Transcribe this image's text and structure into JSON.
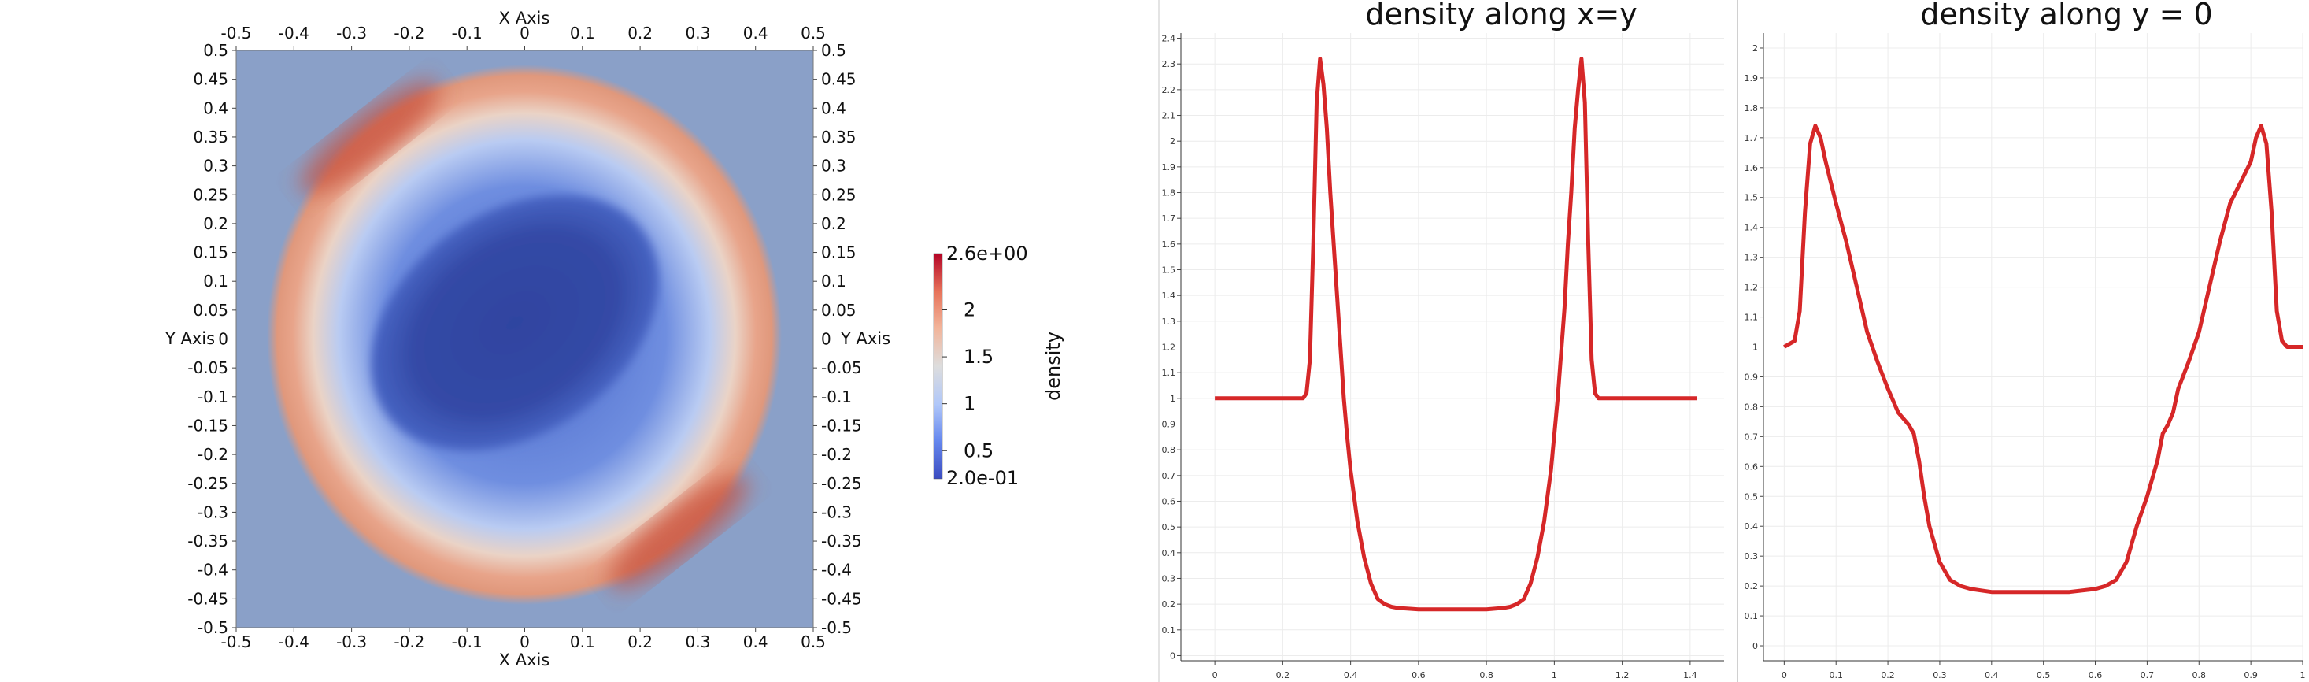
{
  "chart_data": [
    {
      "type": "heatmap",
      "title": "",
      "xlabel": "X Axis",
      "ylabel": "Y Axis",
      "xlim": [
        -0.5,
        0.5
      ],
      "ylim": [
        -0.5,
        0.5
      ],
      "x_ticks": [
        -0.5,
        -0.4,
        -0.3,
        -0.2,
        -0.1,
        0,
        0.1,
        0.2,
        0.3,
        0.4,
        0.5
      ],
      "y_ticks": [
        0.5,
        0.45,
        0.4,
        0.35,
        0.3,
        0.25,
        0.2,
        0.15,
        0.1,
        0.05,
        0,
        -0.05,
        -0.1,
        -0.15,
        -0.2,
        -0.25,
        -0.3,
        -0.35,
        -0.4,
        -0.45,
        -0.5
      ],
      "colorbar": {
        "title": "density",
        "range": [
          0.2,
          2.6
        ],
        "max_label": "2.6e+00",
        "min_label": "2.0e-01",
        "ticks": [
          {
            "value": 2,
            "label": "2"
          },
          {
            "value": 1.5,
            "label": "1.5"
          },
          {
            "value": 1,
            "label": "1"
          },
          {
            "value": 0.5,
            "label": "0.5"
          }
        ],
        "colormap": [
          "#3b4cc0",
          "#6688ee",
          "#b0c7f9",
          "#dddddd",
          "#f2b49a",
          "#e7745b",
          "#b40426"
        ]
      },
      "field": {
        "background_value": 1.0,
        "shock_ring_peak": 2.1,
        "shock_ring_max": 2.6,
        "core_min": 0.2
      }
    },
    {
      "type": "line",
      "title": "density along x=y",
      "xlim": [
        -0.1,
        1.5
      ],
      "ylim": [
        -0.02,
        2.42
      ],
      "x_ticks": [
        0,
        0.2,
        0.4,
        0.6,
        0.8,
        1,
        1.2,
        1.4
      ],
      "y_ticks": [
        0,
        0.1,
        0.2,
        0.3,
        0.4,
        0.5,
        0.6,
        0.7,
        0.8,
        0.9,
        1,
        1.1,
        1.2,
        1.3,
        1.4,
        1.5,
        1.6,
        1.7,
        1.8,
        1.9,
        2,
        2.1,
        2.2,
        2.3,
        2.4
      ],
      "line_color": "#d62728",
      "series": [
        {
          "x": [
            0,
            0.26,
            0.27,
            0.28,
            0.29,
            0.3,
            0.31,
            0.32,
            0.33,
            0.34,
            0.35,
            0.36,
            0.37,
            0.38,
            0.39,
            0.4,
            0.42,
            0.44,
            0.46,
            0.48,
            0.5,
            0.52,
            0.54,
            0.6,
            0.7,
            0.8,
            0.85,
            0.87,
            0.89,
            0.91,
            0.93,
            0.95,
            0.97,
            0.99,
            1.01,
            1.03,
            1.04,
            1.05,
            1.06,
            1.07,
            1.08,
            1.09,
            1.1,
            1.11,
            1.12,
            1.13,
            1.14,
            1.15,
            1.16,
            1.42
          ],
          "y": [
            1,
            1,
            1.02,
            1.15,
            1.6,
            2.15,
            2.32,
            2.22,
            2.05,
            1.8,
            1.6,
            1.4,
            1.2,
            1.0,
            0.85,
            0.72,
            0.52,
            0.38,
            0.28,
            0.22,
            0.2,
            0.19,
            0.185,
            0.18,
            0.18,
            0.18,
            0.185,
            0.19,
            0.2,
            0.22,
            0.28,
            0.38,
            0.52,
            0.72,
            1.0,
            1.35,
            1.6,
            1.8,
            2.05,
            2.2,
            2.32,
            2.15,
            1.6,
            1.15,
            1.02,
            1,
            1,
            1,
            1,
            1
          ]
        }
      ]
    },
    {
      "type": "line",
      "title": "density along y = 0",
      "xlim": [
        -0.04,
        1.0
      ],
      "ylim": [
        -0.05,
        2.05
      ],
      "x_ticks": [
        0,
        0.1,
        0.2,
        0.3,
        0.4,
        0.5,
        0.6,
        0.7,
        0.8,
        0.9,
        1
      ],
      "y_ticks": [
        0,
        0.1,
        0.2,
        0.3,
        0.4,
        0.5,
        0.6,
        0.7,
        0.8,
        0.9,
        1,
        1.1,
        1.2,
        1.3,
        1.4,
        1.5,
        1.6,
        1.7,
        1.8,
        1.9,
        2
      ],
      "line_color": "#d62728",
      "series": [
        {
          "x": [
            0,
            0.02,
            0.03,
            0.04,
            0.05,
            0.06,
            0.07,
            0.08,
            0.09,
            0.1,
            0.12,
            0.14,
            0.16,
            0.18,
            0.2,
            0.22,
            0.24,
            0.25,
            0.26,
            0.27,
            0.28,
            0.3,
            0.32,
            0.34,
            0.36,
            0.38,
            0.4,
            0.45,
            0.5,
            0.55,
            0.6,
            0.62,
            0.64,
            0.66,
            0.68,
            0.7,
            0.72,
            0.73,
            0.74,
            0.75,
            0.76,
            0.78,
            0.8,
            0.82,
            0.84,
            0.86,
            0.88,
            0.9,
            0.91,
            0.92,
            0.93,
            0.94,
            0.95,
            0.96,
            0.97,
            0.98,
            1.0
          ],
          "y": [
            1,
            1.02,
            1.12,
            1.45,
            1.68,
            1.74,
            1.7,
            1.62,
            1.55,
            1.48,
            1.35,
            1.2,
            1.05,
            0.95,
            0.86,
            0.78,
            0.74,
            0.71,
            0.62,
            0.5,
            0.4,
            0.28,
            0.22,
            0.2,
            0.19,
            0.185,
            0.18,
            0.18,
            0.18,
            0.18,
            0.19,
            0.2,
            0.22,
            0.28,
            0.4,
            0.5,
            0.62,
            0.71,
            0.74,
            0.78,
            0.86,
            0.95,
            1.05,
            1.2,
            1.35,
            1.48,
            1.55,
            1.62,
            1.7,
            1.74,
            1.68,
            1.45,
            1.12,
            1.02,
            1.0,
            1.0,
            1.0
          ]
        }
      ]
    }
  ]
}
